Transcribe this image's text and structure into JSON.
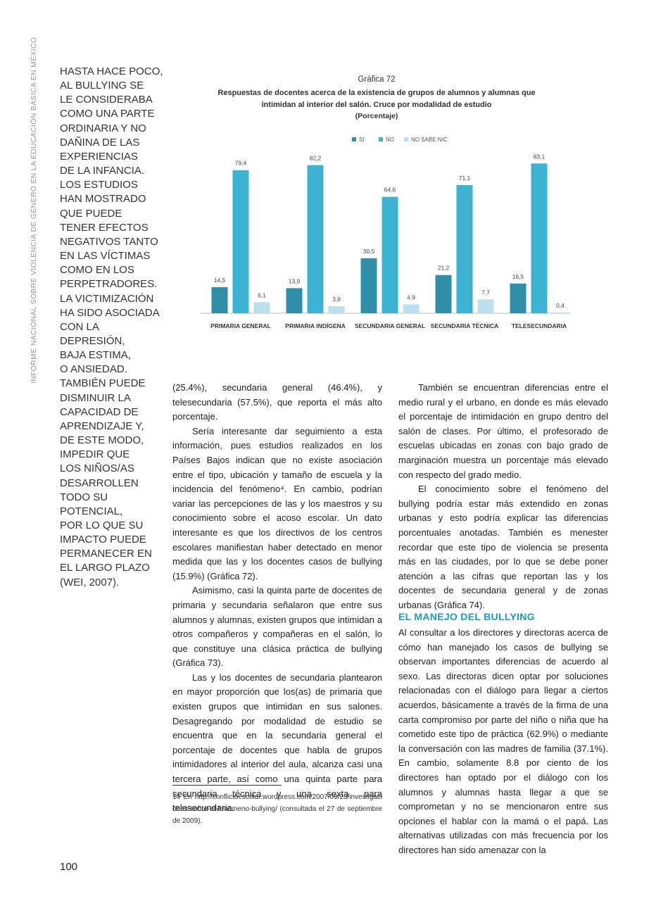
{
  "sidebar": "INFORME NACIONAL SOBRE VIOLENCIA DE GÉNERO EN LA EDUCACIÓN BÁSICA EN MÉXICO",
  "pull_quote": [
    "HASTA HACE POCO,",
    "AL BULLYING SE",
    "LE CONSIDERABA",
    "COMO UNA PARTE",
    "ORDINARIA Y NO",
    "DAÑINA DE LAS",
    "EXPERIENCIAS",
    "DE LA INFANCIA.",
    "LOS ESTUDIOS",
    "HAN MOSTRADO",
    "QUE PUEDE",
    "TENER EFECTOS",
    "NEGATIVOS TANTO",
    "EN LAS VÍCTIMAS",
    "COMO EN LOS",
    "PERPETRADORES.",
    "LA VICTIMIZACIÓN",
    "HA SIDO ASOCIADA",
    "CON LA DEPRESIÓN,",
    "BAJA ESTIMA,",
    "O ANSIEDAD.",
    "TAMBIÉN PUEDE",
    "DISMINUIR LA",
    "CAPACIDAD DE",
    "APRENDIZAJE Y,",
    "DE ESTE MODO,",
    "IMPEDIR QUE",
    "LOS NIÑOS/AS",
    "DESARROLLEN",
    "TODO SU",
    "POTENCIAL,",
    "POR LO QUE SU",
    "IMPACTO PUEDE",
    "PERMANECER EN",
    "EL LARGO PLAZO",
    "(WEI, 2007)."
  ],
  "chart_data": {
    "type": "bar",
    "label": "Gráfica 72",
    "title": "Respuestas de docentes acerca de la existencia de grupos de alumnos y alumnas que intimidan al interior del salón. Cruce por modalidad de estudio",
    "subtitle": "(Porcentaje)",
    "categories": [
      "PRIMARIA GENERAL",
      "PRIMARIA INDÍGENA",
      "SECUNDARIA GENERAL",
      "SECUNDARIA TÉCNICA",
      "TELESECUNDARIA"
    ],
    "series": [
      {
        "name": "SI",
        "color": "#2f8ea8",
        "values": [
          14.5,
          13.9,
          30.5,
          21.2,
          16.5
        ],
        "value_labels": [
          "14,5",
          "13,9",
          "30,5",
          "21,2",
          "16,5"
        ]
      },
      {
        "name": "NO",
        "color": "#3cb2d5",
        "values": [
          79.4,
          82.2,
          64.6,
          71.1,
          83.1
        ],
        "value_labels": [
          "79,4",
          "82,2",
          "64,6",
          "71,1",
          "83,1"
        ]
      },
      {
        "name": "NO SABE N/C",
        "color": "#bde0ee",
        "values": [
          6.1,
          3.9,
          4.9,
          7.7,
          0.4
        ],
        "value_labels": [
          "6,1",
          "3,9",
          "4,9",
          "7,7",
          "0,4"
        ]
      }
    ]
  },
  "body": {
    "left": [
      "(25.4%), secundaria general (46.4%), y telesecundaria (57.5%), que reporta el más alto porcentaje.",
      "Sería interesante dar seguimiento a esta información, pues estudios realizados en los Países Bajos indican que no existe asociación entre el tipo, ubicación y tamaño de escuela y la incidencia del fenómeno⁴. En cambio, podrían variar las percepciones de las y los maestros y su conocimiento sobre el acoso escolar. Un dato interesante es que los directivos de los centros escolares manifiestan haber detectado en menor medida que las y los docentes casos de bullying (15.9%) (Gráfica 72).",
      "Asimismo, casi la quinta parte de docentes de primaria y secundaria señalaron que entre sus alumnos y alumnas, existen grupos que intimidan a otros compañeros y compañeras en el salón, lo que constituye una clásica práctica de bullying (Gráfica 73).",
      "Las y los docentes de secundaria plantearon en mayor proporción que los(as) de primaria que existen grupos que intimidan en sus salones. Desagregando por modalidad de estudio se encuentra que en la secundaria general el porcentaje de docentes que habla de grupos intimidadores al interior del aula, alcanza casi una tercera parte, así como una quinta parte para secundaria técnica y una sexta para telesecundaria."
    ],
    "right_top": [
      "También se encuentran diferencias entre el medio rural y el urbano, en donde es más elevado el porcentaje de intimidación en grupo dentro del salón de clases. Por último, el profesorado de escuelas ubicadas en zonas con bajo grado de marginación muestra un porcentaje más elevado con respecto del grado medio.",
      "El conocimiento sobre el fenómeno del bullying podría estar más extendido en zonas urbanas y esto podría explicar las diferencias porcentuales anotadas. También es menester recordar que este tipo de violencia se presenta más en las ciudades, por lo que se debe poner atención a las cifras que reportan las y los docentes de secundaria general y de zonas urbanas (Gráfica 74)."
    ],
    "heading": "EL MANEJO DEL BULLYING",
    "right_bottom": [
      "Al consultar a los directores y directoras acerca de cómo han manejado los casos de bullying se observan importantes diferencias de acuerdo al sexo. Las directoras dicen optar por soluciones relacionadas con el diálogo para llegar a ciertos acuerdos, básicamente a través de la firma de una carta compromiso por parte del niño o niña que ha cometido este tipo de práctica (62.9%) o mediante la conversación con las madres de familia (37.1%). En cambio, solamente 8.8 por ciento de los directores han optado por el diálogo con los alumnos y alumnas hasta llegar a que se comprometan y no se mencionaron entre sus opciones el hablar con la mamá o el papá. Las alternativas utilizadas con más frecuencia por los directores han sido amenazar con la"
    ]
  },
  "footnote": "14 En http://conflictoescolar.wordpress.com/2007/09/23/investigaciones-sobre-el-fenomeno-bullying/ (consultada el 27 de septiembre de 2009).",
  "page_number": "100"
}
